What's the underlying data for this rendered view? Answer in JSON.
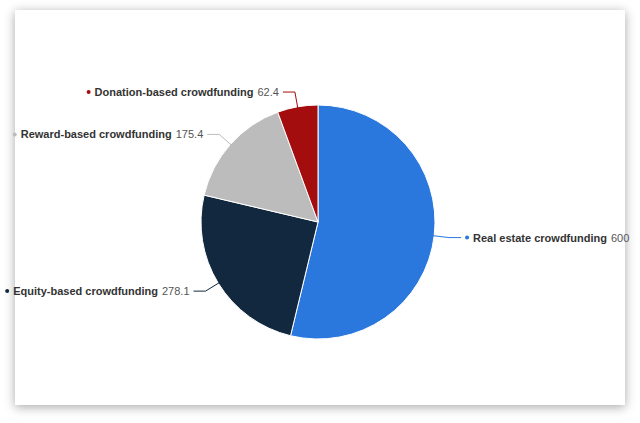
{
  "chart_data": {
    "type": "pie",
    "categories": [
      "Real estate crowdfunding",
      "Equity-based crowdfunding",
      "Reward-based crowdfunding",
      "Donation-based crowdfunding"
    ],
    "values": [
      600,
      278.1,
      175.4,
      62.4
    ],
    "colors": [
      "#2a78de",
      "#12283f",
      "#bcbcbc",
      "#a30d0d"
    ],
    "data_labels": true
  }
}
